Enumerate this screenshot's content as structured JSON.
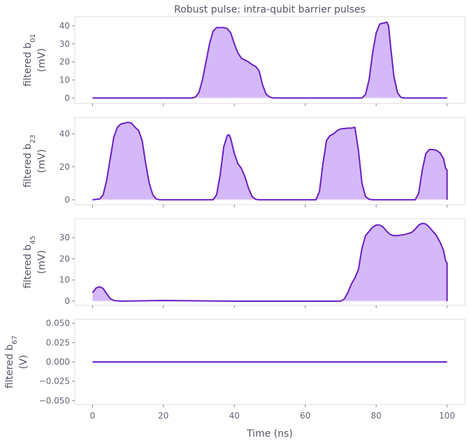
{
  "title": "Robust pulse: intra-qubit barrier pulses",
  "xlabel": "Time (ns)",
  "colors": {
    "line": "#6a1fc2",
    "fill": "#d4b8f8",
    "spine": "#dcdcdc",
    "tick": "#666677"
  },
  "chart_data": [
    {
      "type": "area",
      "ylabel_main": "filtered b",
      "ylabel_sub": "01",
      "ylabel_unit": "(mV)",
      "xlim": [
        -5,
        105
      ],
      "ylim": [
        -3,
        45
      ],
      "xticks": [
        0,
        20,
        40,
        60,
        80,
        100
      ],
      "yticks": [
        0,
        10,
        20,
        30,
        40
      ],
      "ytick_labels": [
        "0",
        "10",
        "20",
        "30",
        "40"
      ],
      "points": [
        [
          0,
          0
        ],
        [
          28,
          0
        ],
        [
          29,
          0.5
        ],
        [
          30,
          3
        ],
        [
          31,
          10
        ],
        [
          32,
          20
        ],
        [
          33,
          30
        ],
        [
          34,
          37
        ],
        [
          35,
          39
        ],
        [
          36,
          39
        ],
        [
          37,
          39
        ],
        [
          38,
          38.5
        ],
        [
          39,
          36
        ],
        [
          40,
          30
        ],
        [
          41,
          25
        ],
        [
          42,
          22
        ],
        [
          43,
          21
        ],
        [
          44,
          20
        ],
        [
          45,
          18.5
        ],
        [
          46,
          17.5
        ],
        [
          47,
          15
        ],
        [
          47.5,
          11
        ],
        [
          48,
          7
        ],
        [
          49,
          2
        ],
        [
          50,
          0.5
        ],
        [
          51,
          0
        ],
        [
          76,
          0
        ],
        [
          77,
          2
        ],
        [
          78,
          10
        ],
        [
          79,
          25
        ],
        [
          80,
          36
        ],
        [
          81,
          41
        ],
        [
          82,
          41.5
        ],
        [
          83,
          42
        ],
        [
          83.5,
          40
        ],
        [
          84,
          30
        ],
        [
          85,
          12
        ],
        [
          86,
          3
        ],
        [
          87,
          0.3
        ],
        [
          88,
          0
        ],
        [
          100,
          0
        ]
      ]
    },
    {
      "type": "area",
      "ylabel_main": "filtered b",
      "ylabel_sub": "23",
      "ylabel_unit": "(mV)",
      "xlim": [
        -5,
        105
      ],
      "ylim": [
        -3,
        50
      ],
      "xticks": [
        0,
        20,
        40,
        60,
        80,
        100
      ],
      "yticks": [
        0,
        20,
        40
      ],
      "ytick_labels": [
        "0",
        "20",
        "40"
      ],
      "points": [
        [
          0,
          0
        ],
        [
          2,
          0.5
        ],
        [
          3,
          3
        ],
        [
          4,
          12
        ],
        [
          5,
          25
        ],
        [
          6,
          38
        ],
        [
          7,
          44
        ],
        [
          8,
          46
        ],
        [
          9,
          46.5
        ],
        [
          10,
          47
        ],
        [
          11,
          46.5
        ],
        [
          12,
          44
        ],
        [
          13,
          42
        ],
        [
          14,
          36
        ],
        [
          15,
          22
        ],
        [
          16,
          10
        ],
        [
          17,
          3
        ],
        [
          18,
          0.5
        ],
        [
          19,
          0
        ],
        [
          34,
          0
        ],
        [
          35,
          3
        ],
        [
          36,
          15
        ],
        [
          37,
          32
        ],
        [
          38,
          39
        ],
        [
          38.5,
          39.5
        ],
        [
          39,
          37
        ],
        [
          40,
          28
        ],
        [
          41,
          22
        ],
        [
          42,
          19
        ],
        [
          43,
          14
        ],
        [
          44,
          7
        ],
        [
          45,
          2
        ],
        [
          46,
          0.3
        ],
        [
          47,
          0
        ],
        [
          63,
          0
        ],
        [
          64,
          5
        ],
        [
          65,
          22
        ],
        [
          66,
          36
        ],
        [
          67,
          39
        ],
        [
          68,
          40
        ],
        [
          69,
          42
        ],
        [
          70,
          43
        ],
        [
          72,
          43.5
        ],
        [
          73,
          43.5
        ],
        [
          74,
          44
        ],
        [
          75,
          30
        ],
        [
          76,
          10
        ],
        [
          77,
          2
        ],
        [
          78,
          0.3
        ],
        [
          79,
          0
        ],
        [
          91,
          0
        ],
        [
          92,
          4
        ],
        [
          93,
          18
        ],
        [
          94,
          28
        ],
        [
          95,
          30.5
        ],
        [
          96,
          30.5
        ],
        [
          97,
          30
        ],
        [
          98,
          28.5
        ],
        [
          99,
          25
        ],
        [
          99.6,
          19
        ],
        [
          100,
          18
        ],
        [
          100,
          0
        ]
      ]
    },
    {
      "type": "area",
      "ylabel_main": "filtered b",
      "ylabel_sub": "45",
      "ylabel_unit": "(mV)",
      "xlim": [
        -5,
        105
      ],
      "ylim": [
        -2,
        39
      ],
      "xticks": [
        0,
        20,
        40,
        60,
        80,
        100
      ],
      "yticks": [
        0,
        10,
        20,
        30
      ],
      "ytick_labels": [
        "0",
        "10",
        "20",
        "30"
      ],
      "points": [
        [
          0,
          4
        ],
        [
          0.5,
          5
        ],
        [
          1,
          6.2
        ],
        [
          2,
          6.8
        ],
        [
          3,
          6
        ],
        [
          4,
          3.5
        ],
        [
          5,
          1.2
        ],
        [
          6,
          0.3
        ],
        [
          8,
          0
        ],
        [
          20,
          0.3
        ],
        [
          40,
          0
        ],
        [
          70,
          0
        ],
        [
          71,
          1
        ],
        [
          72,
          4
        ],
        [
          73,
          8
        ],
        [
          74,
          11
        ],
        [
          75,
          15
        ],
        [
          76,
          25
        ],
        [
          77,
          31
        ],
        [
          78,
          33
        ],
        [
          79,
          35
        ],
        [
          80,
          36
        ],
        [
          81,
          36
        ],
        [
          82,
          35
        ],
        [
          83,
          33
        ],
        [
          84,
          31.5
        ],
        [
          85,
          31
        ],
        [
          86,
          31
        ],
        [
          88,
          31.5
        ],
        [
          90,
          32.5
        ],
        [
          91,
          34
        ],
        [
          92,
          36
        ],
        [
          93,
          36.8
        ],
        [
          94,
          36.5
        ],
        [
          95,
          35
        ],
        [
          96,
          33
        ],
        [
          97,
          31
        ],
        [
          98,
          28
        ],
        [
          99,
          24
        ],
        [
          99.6,
          19
        ],
        [
          100,
          18
        ],
        [
          100,
          0
        ]
      ]
    },
    {
      "type": "line",
      "ylabel_main": "filtered b",
      "ylabel_sub": "67",
      "ylabel_unit": "(V)",
      "xlim": [
        -5,
        105
      ],
      "ylim": [
        -0.055,
        0.055
      ],
      "xticks": [
        0,
        20,
        40,
        60,
        80,
        100
      ],
      "xtick_labels": [
        "0",
        "20",
        "40",
        "60",
        "80",
        "100"
      ],
      "yticks": [
        0.05,
        0.025,
        0,
        -0.025,
        -0.05
      ],
      "ytick_labels": [
        "0.050",
        "0.025",
        "0.000",
        "−0.025",
        "−0.050"
      ],
      "points": [
        [
          0,
          0
        ],
        [
          100,
          0
        ]
      ]
    }
  ]
}
